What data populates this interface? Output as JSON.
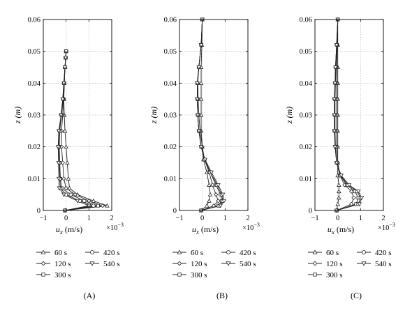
{
  "figure": {
    "panel_labels": [
      "(A)",
      "(B)",
      "(C)"
    ]
  },
  "chart_data": [
    {
      "type": "line",
      "panel": "(A)",
      "xlabel": "u_x (m/s)",
      "xlabel_main": "u",
      "xlabel_sub": "x",
      "xlabel_unit": "(m/s)",
      "x_multiplier": "×10",
      "x_multiplier_exp": "−3",
      "ylabel": "z (m)",
      "xlim": [
        -1,
        2
      ],
      "ylim": [
        0,
        0.06
      ],
      "xticks": [
        "−1",
        "0",
        "1",
        "2"
      ],
      "yticks": [
        "0",
        "0.01",
        "0.02",
        "0.03",
        "0.04",
        "0.05",
        "0.06"
      ],
      "grid": true,
      "legend_position": "below",
      "series": [
        {
          "name": "60 s",
          "marker": "triangle-up",
          "x": [
            -0.05,
            1.8,
            1.2,
            0.5,
            0.15,
            0.1,
            0.05,
            0.0,
            -0.05,
            -0.08,
            -0.1,
            -0.08,
            -0.05,
            -0.02,
            0.0
          ],
          "y": [
            0,
            0.0015,
            0.003,
            0.005,
            0.007,
            0.01,
            0.015,
            0.02,
            0.025,
            0.03,
            0.035,
            0.04,
            0.045,
            0.048,
            0.05
          ]
        },
        {
          "name": "120 s",
          "marker": "diamond",
          "x": [
            -0.05,
            1.6,
            1.0,
            0.4,
            0.0,
            -0.1,
            -0.15,
            -0.2,
            -0.2,
            -0.15,
            -0.1,
            -0.08,
            -0.05,
            -0.02,
            0.0
          ],
          "y": [
            0,
            0.0015,
            0.003,
            0.005,
            0.007,
            0.01,
            0.015,
            0.02,
            0.025,
            0.03,
            0.035,
            0.04,
            0.045,
            0.048,
            0.05
          ]
        },
        {
          "name": "300 s",
          "marker": "square",
          "x": [
            -0.05,
            1.4,
            0.8,
            0.2,
            -0.2,
            -0.25,
            -0.28,
            -0.3,
            -0.28,
            -0.2,
            -0.12,
            -0.08,
            -0.05,
            -0.02,
            0.0
          ],
          "y": [
            0,
            0.0015,
            0.003,
            0.005,
            0.007,
            0.01,
            0.015,
            0.02,
            0.025,
            0.03,
            0.035,
            0.04,
            0.045,
            0.048,
            0.05
          ]
        },
        {
          "name": "420 s",
          "marker": "circle",
          "x": [
            -0.05,
            1.2,
            0.6,
            0.0,
            -0.25,
            -0.28,
            -0.3,
            -0.33,
            -0.3,
            -0.22,
            -0.14,
            -0.1,
            -0.05,
            -0.02,
            0.0
          ],
          "y": [
            0,
            0.0015,
            0.003,
            0.005,
            0.007,
            0.01,
            0.015,
            0.02,
            0.025,
            0.03,
            0.035,
            0.04,
            0.045,
            0.048,
            0.05
          ]
        },
        {
          "name": "540 s",
          "marker": "triangle-down",
          "x": [
            -0.05,
            1.0,
            0.5,
            -0.1,
            -0.3,
            -0.32,
            -0.33,
            -0.35,
            -0.32,
            -0.22,
            -0.15,
            -0.1,
            -0.05,
            -0.02,
            0.0
          ],
          "y": [
            0,
            0.0015,
            0.003,
            0.005,
            0.007,
            0.01,
            0.015,
            0.02,
            0.025,
            0.03,
            0.035,
            0.04,
            0.045,
            0.048,
            0.05
          ]
        }
      ]
    },
    {
      "type": "line",
      "panel": "(B)",
      "xlabel": "u_x (m/s)",
      "xlabel_main": "u",
      "xlabel_sub": "x",
      "xlabel_unit": "(m/s)",
      "x_multiplier": "×10",
      "x_multiplier_exp": "−3",
      "ylabel": "z (m)",
      "xlim": [
        -1,
        2
      ],
      "ylim": [
        0,
        0.06
      ],
      "xticks": [
        "−1",
        "0",
        "1",
        "2"
      ],
      "yticks": [
        "0",
        "0.01",
        "0.02",
        "0.03",
        "0.04",
        "0.05",
        "0.06"
      ],
      "grid": true,
      "legend_position": "below",
      "series": [
        {
          "name": "60 s",
          "marker": "triangle-up",
          "x": [
            -0.05,
            0.2,
            0.3,
            0.35,
            0.3,
            0.2,
            0.05,
            0.0,
            -0.05,
            -0.05,
            -0.05,
            -0.05,
            -0.05,
            -0.02,
            0.0
          ],
          "y": [
            0,
            0.0015,
            0.003,
            0.005,
            0.008,
            0.012,
            0.016,
            0.02,
            0.025,
            0.03,
            0.035,
            0.04,
            0.045,
            0.052,
            0.06
          ]
        },
        {
          "name": "120 s",
          "marker": "diamond",
          "x": [
            -0.05,
            0.5,
            0.7,
            0.6,
            0.45,
            0.3,
            0.1,
            0.0,
            -0.1,
            -0.15,
            -0.18,
            -0.2,
            -0.15,
            -0.05,
            0.0
          ],
          "y": [
            0,
            0.0015,
            0.003,
            0.005,
            0.008,
            0.012,
            0.016,
            0.02,
            0.025,
            0.03,
            0.035,
            0.04,
            0.045,
            0.052,
            0.06
          ]
        },
        {
          "name": "300 s",
          "marker": "square",
          "x": [
            -0.05,
            0.7,
            0.85,
            0.8,
            0.6,
            0.35,
            0.1,
            -0.05,
            -0.15,
            -0.2,
            -0.22,
            -0.22,
            -0.15,
            -0.05,
            0.0
          ],
          "y": [
            0,
            0.0015,
            0.003,
            0.005,
            0.008,
            0.012,
            0.016,
            0.02,
            0.025,
            0.03,
            0.035,
            0.04,
            0.045,
            0.052,
            0.06
          ]
        },
        {
          "name": "420 s",
          "marker": "circle",
          "x": [
            -0.05,
            0.75,
            0.9,
            0.85,
            0.65,
            0.35,
            0.1,
            -0.05,
            -0.15,
            -0.2,
            -0.22,
            -0.22,
            -0.15,
            -0.05,
            0.0
          ],
          "y": [
            0,
            0.0015,
            0.003,
            0.005,
            0.008,
            0.012,
            0.016,
            0.02,
            0.025,
            0.03,
            0.035,
            0.04,
            0.045,
            0.052,
            0.06
          ]
        },
        {
          "name": "540 s",
          "marker": "triangle-down",
          "x": [
            -0.05,
            0.8,
            0.95,
            0.9,
            0.7,
            0.4,
            0.12,
            -0.05,
            -0.15,
            -0.2,
            -0.22,
            -0.22,
            -0.15,
            -0.05,
            0.0
          ],
          "y": [
            0,
            0.0015,
            0.003,
            0.005,
            0.008,
            0.012,
            0.016,
            0.02,
            0.025,
            0.03,
            0.035,
            0.04,
            0.045,
            0.052,
            0.06
          ]
        }
      ]
    },
    {
      "type": "line",
      "panel": "(C)",
      "xlabel": "u_x (m/s)",
      "xlabel_main": "u",
      "xlabel_sub": "x",
      "xlabel_unit": "(m/s)",
      "x_multiplier": "×10",
      "x_multiplier_exp": "−3",
      "ylabel": "z (m)",
      "xlim": [
        -1,
        2
      ],
      "ylim": [
        0,
        0.06
      ],
      "xticks": [
        "−1",
        "0",
        "1",
        "2"
      ],
      "yticks": [
        "0",
        "0.01",
        "0.02",
        "0.03",
        "0.04",
        "0.05",
        "0.06"
      ],
      "grid": true,
      "legend_position": "below",
      "series": [
        {
          "name": "60 s",
          "marker": "triangle-up",
          "x": [
            -0.05,
            0.0,
            0.05,
            0.05,
            0.05,
            0.0,
            0.0,
            0.0,
            0.0,
            0.0,
            0.0,
            0.0,
            0.0,
            0.0,
            0.0
          ],
          "y": [
            0,
            0.002,
            0.004,
            0.006,
            0.008,
            0.011,
            0.015,
            0.02,
            0.025,
            0.03,
            0.035,
            0.04,
            0.045,
            0.052,
            0.06
          ]
        },
        {
          "name": "120 s",
          "marker": "diamond",
          "x": [
            -0.05,
            0.6,
            0.7,
            0.6,
            0.3,
            0.1,
            0.0,
            -0.05,
            -0.05,
            -0.05,
            -0.05,
            -0.05,
            -0.05,
            -0.02,
            0.0
          ],
          "y": [
            0,
            0.002,
            0.004,
            0.006,
            0.008,
            0.011,
            0.015,
            0.02,
            0.025,
            0.03,
            0.035,
            0.04,
            0.045,
            0.052,
            0.06
          ]
        },
        {
          "name": "300 s",
          "marker": "square",
          "x": [
            -0.05,
            0.8,
            0.9,
            0.75,
            0.4,
            0.1,
            -0.05,
            -0.1,
            -0.12,
            -0.12,
            -0.12,
            -0.1,
            -0.08,
            -0.03,
            0.0
          ],
          "y": [
            0,
            0.002,
            0.004,
            0.006,
            0.008,
            0.011,
            0.015,
            0.02,
            0.025,
            0.03,
            0.035,
            0.04,
            0.045,
            0.052,
            0.06
          ]
        },
        {
          "name": "420 s",
          "marker": "circle",
          "x": [
            -0.05,
            0.9,
            1.0,
            0.85,
            0.45,
            0.12,
            -0.05,
            -0.1,
            -0.15,
            -0.15,
            -0.15,
            -0.12,
            -0.1,
            -0.05,
            0.0
          ],
          "y": [
            0,
            0.002,
            0.004,
            0.006,
            0.008,
            0.011,
            0.015,
            0.02,
            0.025,
            0.03,
            0.035,
            0.04,
            0.045,
            0.052,
            0.06
          ]
        },
        {
          "name": "540 s",
          "marker": "triangle-down",
          "x": [
            -0.05,
            0.95,
            1.05,
            0.9,
            0.5,
            0.15,
            -0.05,
            -0.12,
            -0.15,
            -0.15,
            -0.15,
            -0.12,
            -0.1,
            -0.05,
            0.0
          ],
          "y": [
            0,
            0.002,
            0.004,
            0.006,
            0.008,
            0.011,
            0.015,
            0.02,
            0.025,
            0.03,
            0.035,
            0.04,
            0.045,
            0.052,
            0.06
          ]
        }
      ]
    }
  ]
}
